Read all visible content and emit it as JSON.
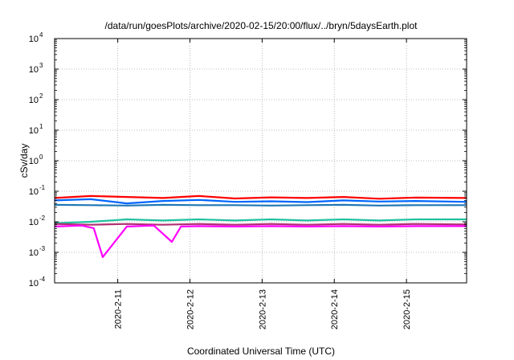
{
  "chart_data": {
    "type": "line",
    "title": "/data/run/goesPlots/archive/2020-02-15/20:00/flux/../bryn/5daysEarth.plot",
    "xlabel": "Coordinated Universal Time (UTC)",
    "ylabel": "cSv/day",
    "yscale": "log",
    "ylim": [
      0.0001,
      10000
    ],
    "xlim": [
      "2020-02-10 03:00",
      "2020-02-15 20:00"
    ],
    "grid": true,
    "y_ticks": [
      {
        "base": "10",
        "exp": "-4"
      },
      {
        "base": "10",
        "exp": "-3"
      },
      {
        "base": "10",
        "exp": "-2"
      },
      {
        "base": "10",
        "exp": "-1"
      },
      {
        "base": "10",
        "exp": "0"
      },
      {
        "base": "10",
        "exp": "1"
      },
      {
        "base": "10",
        "exp": "2"
      },
      {
        "base": "10",
        "exp": "3"
      },
      {
        "base": "10",
        "exp": "4"
      }
    ],
    "x_ticks": [
      "2020-2-11",
      "2020-2-12",
      "2020-2-13",
      "2020-2-14",
      "2020-2-15"
    ],
    "x_tick_times": [
      "2020-02-11 00:00",
      "2020-02-12 00:00",
      "2020-02-13 00:00",
      "2020-02-14 00:00",
      "2020-02-15 00:00"
    ],
    "series": [
      {
        "color": "#ff0000",
        "x": [
          "2020-02-10 03:00",
          "2020-02-10 15:00",
          "2020-02-11 03:00",
          "2020-02-11 15:00",
          "2020-02-12 03:00",
          "2020-02-12 15:00",
          "2020-02-13 03:00",
          "2020-02-13 15:00",
          "2020-02-14 03:00",
          "2020-02-14 15:00",
          "2020-02-15 03:00",
          "2020-02-15 20:00"
        ],
        "y": [
          0.06,
          0.07,
          0.065,
          0.06,
          0.07,
          0.058,
          0.063,
          0.06,
          0.065,
          0.057,
          0.062,
          0.06
        ]
      },
      {
        "color": "#0066ff",
        "x": [
          "2020-02-10 03:00",
          "2020-02-10 15:00",
          "2020-02-11 03:00",
          "2020-02-11 15:00",
          "2020-02-12 03:00",
          "2020-02-12 15:00",
          "2020-02-13 03:00",
          "2020-02-13 15:00",
          "2020-02-14 03:00",
          "2020-02-14 15:00",
          "2020-02-15 03:00",
          "2020-02-15 20:00"
        ],
        "y": [
          0.05,
          0.055,
          0.04,
          0.048,
          0.052,
          0.045,
          0.047,
          0.044,
          0.05,
          0.046,
          0.048,
          0.045
        ]
      },
      {
        "color": "#1f77b4",
        "x": [
          "2020-02-10 03:00",
          "2020-02-10 15:00",
          "2020-02-11 03:00",
          "2020-02-11 15:00",
          "2020-02-12 03:00",
          "2020-02-12 15:00",
          "2020-02-13 03:00",
          "2020-02-13 15:00",
          "2020-02-14 03:00",
          "2020-02-14 15:00",
          "2020-02-15 03:00",
          "2020-02-15 20:00"
        ],
        "y": [
          0.036,
          0.035,
          0.034,
          0.036,
          0.035,
          0.035,
          0.034,
          0.035,
          0.036,
          0.034,
          0.035,
          0.035
        ]
      },
      {
        "color": "#20c0a0",
        "x": [
          "2020-02-10 03:00",
          "2020-02-10 15:00",
          "2020-02-11 03:00",
          "2020-02-11 15:00",
          "2020-02-12 03:00",
          "2020-02-12 15:00",
          "2020-02-13 03:00",
          "2020-02-13 15:00",
          "2020-02-14 03:00",
          "2020-02-14 15:00",
          "2020-02-15 03:00",
          "2020-02-15 20:00"
        ],
        "y": [
          0.009,
          0.01,
          0.012,
          0.011,
          0.012,
          0.011,
          0.012,
          0.011,
          0.012,
          0.011,
          0.012,
          0.012
        ]
      },
      {
        "color": "#b03070",
        "x": [
          "2020-02-10 03:00",
          "2020-02-10 15:00",
          "2020-02-11 03:00",
          "2020-02-11 15:00",
          "2020-02-12 03:00",
          "2020-02-12 15:00",
          "2020-02-13 03:00",
          "2020-02-13 15:00",
          "2020-02-14 03:00",
          "2020-02-14 15:00",
          "2020-02-15 03:00",
          "2020-02-15 20:00"
        ],
        "y": [
          0.0085,
          0.008,
          0.0085,
          0.008,
          0.0085,
          0.008,
          0.0085,
          0.008,
          0.0085,
          0.008,
          0.0085,
          0.0082
        ]
      },
      {
        "color": "#ff00ff",
        "x": [
          "2020-02-10 03:00",
          "2020-02-10 12:00",
          "2020-02-10 16:00",
          "2020-02-10 19:00",
          "2020-02-11 03:00",
          "2020-02-11 12:00",
          "2020-02-11 18:00",
          "2020-02-11 21:00",
          "2020-02-12 03:00",
          "2020-02-12 15:00",
          "2020-02-13 03:00",
          "2020-02-13 15:00",
          "2020-02-14 03:00",
          "2020-02-14 15:00",
          "2020-02-15 03:00",
          "2020-02-15 20:00"
        ],
        "y": [
          0.007,
          0.0075,
          0.0062,
          0.0007,
          0.007,
          0.0075,
          0.0022,
          0.007,
          0.0072,
          0.007,
          0.0072,
          0.007,
          0.0072,
          0.007,
          0.0072,
          0.0072
        ]
      }
    ]
  }
}
